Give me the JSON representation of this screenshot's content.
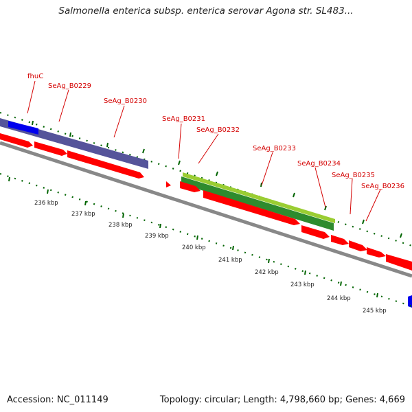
{
  "title": "Salmonella enterica subsp. enterica serovar Agona str. SL483...",
  "footer": {
    "accession": "Accession: NC_011149",
    "summary": "Topology: circular; Length: 4,798,660 bp; Genes: 4,669"
  },
  "gene_labels": [
    {
      "name": "fhuC",
      "text": "fhuC"
    },
    {
      "name": "seag-b0229",
      "text": "SeAg_B0229"
    },
    {
      "name": "seag-b0230",
      "text": "SeAg_B0230"
    },
    {
      "name": "seag-b0231",
      "text": "SeAg_B0231"
    },
    {
      "name": "seag-b0232",
      "text": "SeAg_B0232"
    },
    {
      "name": "seag-b0233",
      "text": "SeAg_B0233"
    },
    {
      "name": "seag-b0234",
      "text": "SeAg_B0234"
    },
    {
      "name": "seag-b0235",
      "text": "SeAg_B0235"
    },
    {
      "name": "seag-b0236",
      "text": "SeAg_B0236"
    }
  ],
  "kbp_labels": [
    "236 kbp",
    "237 kbp",
    "238 kbp",
    "239 kbp",
    "240 kbp",
    "241 kbp",
    "242 kbp",
    "243 kbp",
    "244 kbp",
    "245 kbp"
  ],
  "colors": {
    "cds": "#ff0000",
    "blast_purple": "#55549a",
    "blast_blue": "#0000ee",
    "blast_green_light": "#9acd32",
    "blast_green_dark": "#2e8b2e",
    "backbone": "#888888",
    "ticks": "#006400",
    "label": "#d40000"
  }
}
